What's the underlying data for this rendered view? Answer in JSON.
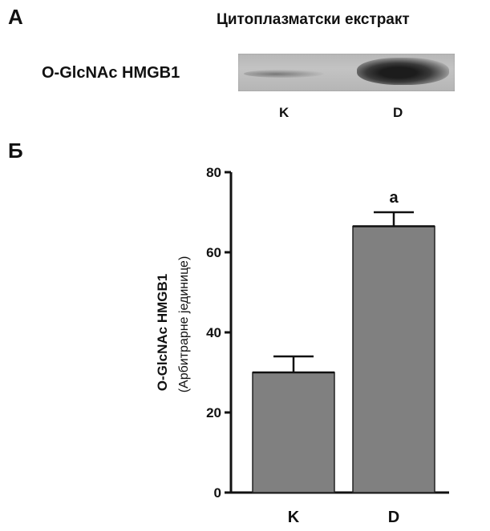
{
  "panel_a": {
    "label": "А",
    "blot_title": "Цитоплазматски екстракт",
    "row_label": "O-GlcNAc HMGB1",
    "lanes": [
      "K",
      "D"
    ]
  },
  "panel_b": {
    "label": "Б"
  },
  "chart_data": {
    "type": "bar",
    "categories": [
      "K",
      "D"
    ],
    "values": [
      30,
      66.5
    ],
    "errors": [
      4,
      3.5
    ],
    "annotations": [
      "",
      "a"
    ],
    "ylabel": "O-GlcNAc HMGB1",
    "ylabel_sub": "(Арбитрарне јединице)",
    "ylim": [
      0,
      80
    ],
    "yticks": [
      0,
      20,
      40,
      60,
      80
    ],
    "bar_color": "#808080",
    "grid": false
  }
}
